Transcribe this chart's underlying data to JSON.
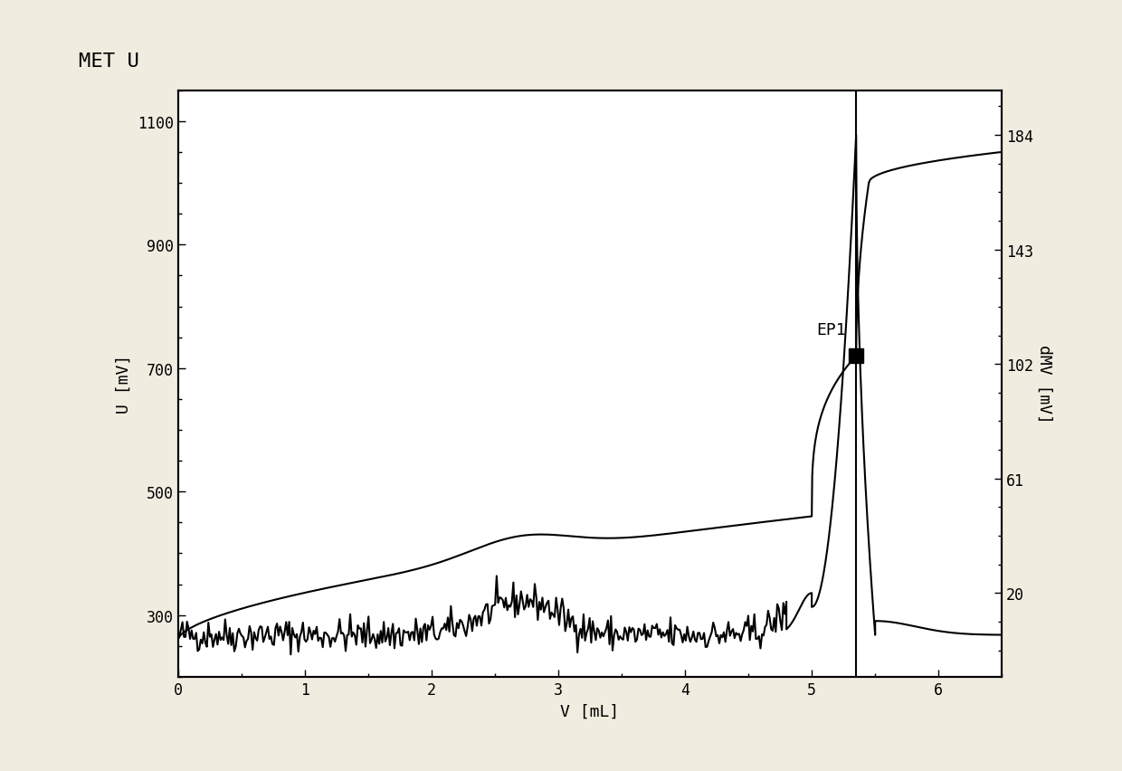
{
  "title": "MET U",
  "xlabel": "V [mL]",
  "ylabel_left": "U [mV]",
  "ylabel_right": "dMV [mV]",
  "xlim": [
    0,
    6.5
  ],
  "ylim_left": [
    200,
    1150
  ],
  "ylim_right": [
    -10,
    200
  ],
  "yticks_left": [
    300,
    500,
    700,
    900,
    1100
  ],
  "yticks_right": [
    20,
    61,
    102,
    143,
    184
  ],
  "xticks": [
    0,
    1,
    2,
    3,
    4,
    5,
    6
  ],
  "ep1_x": 5.35,
  "ep1_y": 720,
  "ep1_label": "EP1",
  "line_color": "#000000",
  "background_color": "#f0ece0",
  "plot_bg_color": "#ffffff",
  "title_fontsize": 16,
  "label_fontsize": 13,
  "tick_fontsize": 12
}
